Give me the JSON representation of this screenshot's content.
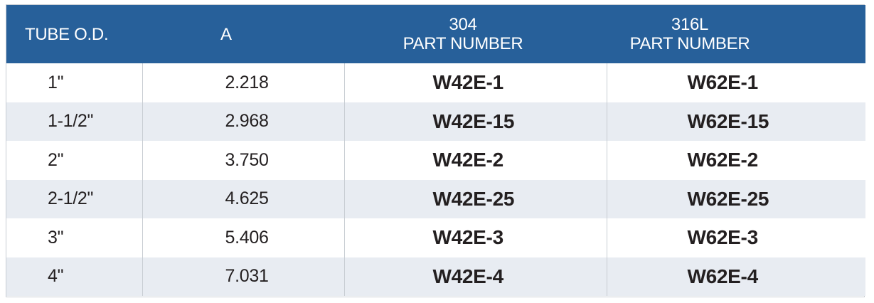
{
  "headers": {
    "tube_od": "TUBE O.D.",
    "a": "A",
    "p304_line1": "304",
    "p304_line2": "PART NUMBER",
    "p316_line1": "316L",
    "p316_line2": "PART NUMBER"
  },
  "rows": [
    {
      "tube_od": "1\"",
      "a": "2.218",
      "p304": "W42E-1",
      "p316": "W62E-1"
    },
    {
      "tube_od": "1-1/2\"",
      "a": "2.968",
      "p304": "W42E-15",
      "p316": "W62E-15"
    },
    {
      "tube_od": "2\"",
      "a": "3.750",
      "p304": "W42E-2",
      "p316": "W62E-2"
    },
    {
      "tube_od": "2-1/2\"",
      "a": "4.625",
      "p304": "W42E-25",
      "p316": "W62E-25"
    },
    {
      "tube_od": "3\"",
      "a": "5.406",
      "p304": "W42E-3",
      "p316": "W62E-3"
    },
    {
      "tube_od": "4\"",
      "a": "7.031",
      "p304": "W42E-4",
      "p316": "W62E-4"
    }
  ],
  "colors": {
    "header_bg": "#27609a",
    "alt_row_bg": "#e8ecf2",
    "border": "#c8cdd3"
  }
}
